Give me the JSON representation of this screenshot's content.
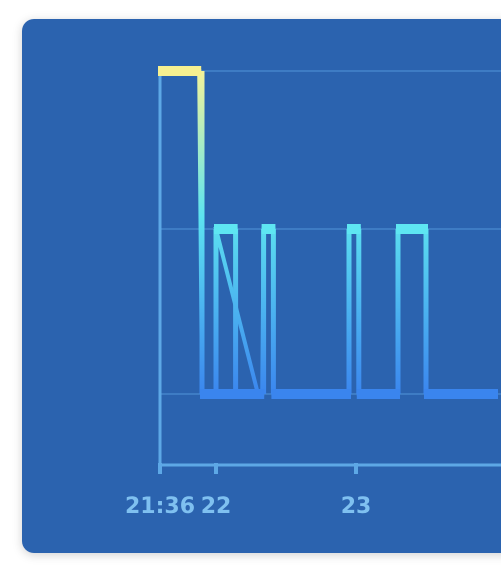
{
  "chart_data": {
    "type": "line",
    "title": "",
    "xlabel": "",
    "ylabel": "",
    "x_tick_labels": [
      {
        "label": "21:36",
        "hour": 21.6
      },
      {
        "label": "22",
        "hour": 22
      },
      {
        "label": "23",
        "hour": 23
      }
    ],
    "xlim": [
      21.6,
      24.0
    ],
    "ylim": [
      0,
      3
    ],
    "levels": [
      1,
      2,
      3
    ],
    "grid": true,
    "series": [
      {
        "steps": [
          {
            "start": 21.6,
            "end": 21.88,
            "level": 3
          },
          {
            "start": 21.9,
            "end": 22.3,
            "level": 1
          },
          {
            "start": 22.0,
            "end": 22.14,
            "level": 2
          },
          {
            "start": 22.14,
            "end": 22.33,
            "level": 1
          },
          {
            "start": 22.34,
            "end": 22.41,
            "level": 2
          },
          {
            "start": 22.41,
            "end": 22.95,
            "level": 1
          },
          {
            "start": 22.95,
            "end": 23.02,
            "level": 2
          },
          {
            "start": 23.02,
            "end": 23.3,
            "level": 1
          },
          {
            "start": 23.3,
            "end": 23.5,
            "level": 2
          },
          {
            "start": 23.5,
            "end": 24.0,
            "level": 1
          }
        ]
      }
    ],
    "colors": {
      "background": "#2b63af",
      "axis": "#5da8e6",
      "grid": "#3e7cc4",
      "level_3": "#f6f090",
      "level_2": "#5ee6f2",
      "level_1": "#3a85ee",
      "gradient_top": "#f3f39a",
      "gradient_mid": "#5de4f0",
      "gradient_bottom": "#3b86ef"
    }
  }
}
